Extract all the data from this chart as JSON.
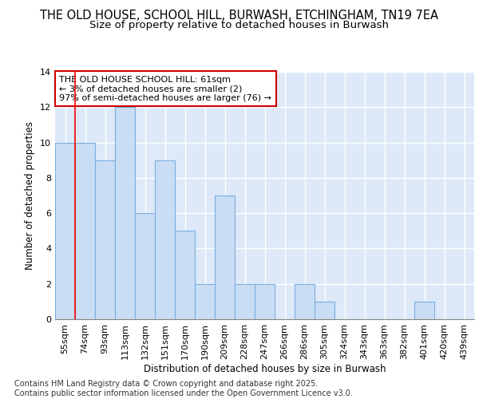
{
  "title1": "THE OLD HOUSE, SCHOOL HILL, BURWASH, ETCHINGHAM, TN19 7EA",
  "title2": "Size of property relative to detached houses in Burwash",
  "xlabel": "Distribution of detached houses by size in Burwash",
  "ylabel": "Number of detached properties",
  "categories": [
    "55sqm",
    "74sqm",
    "93sqm",
    "113sqm",
    "132sqm",
    "151sqm",
    "170sqm",
    "190sqm",
    "209sqm",
    "228sqm",
    "247sqm",
    "266sqm",
    "286sqm",
    "305sqm",
    "324sqm",
    "343sqm",
    "363sqm",
    "382sqm",
    "401sqm",
    "420sqm",
    "439sqm"
  ],
  "values": [
    10,
    10,
    9,
    12,
    6,
    9,
    5,
    2,
    7,
    2,
    2,
    0,
    2,
    1,
    0,
    0,
    0,
    0,
    1,
    0,
    0
  ],
  "bar_color": "#c9ddf5",
  "bar_edge_color": "#7aaede",
  "red_line_x": 0.5,
  "annotation_text": "THE OLD HOUSE SCHOOL HILL: 61sqm\n← 3% of detached houses are smaller (2)\n97% of semi-detached houses are larger (76) →",
  "annotation_box_color": "white",
  "annotation_box_edge_color": "#cc0000",
  "ylim": [
    0,
    14
  ],
  "yticks": [
    0,
    2,
    4,
    6,
    8,
    10,
    12,
    14
  ],
  "footer_text": "Contains HM Land Registry data © Crown copyright and database right 2025.\nContains public sector information licensed under the Open Government Licence v3.0.",
  "fig_bg_color": "#ffffff",
  "plot_bg_color": "#dde9f8",
  "grid_color": "#ffffff",
  "title_fontsize": 10.5,
  "subtitle_fontsize": 9.5,
  "axis_label_fontsize": 8.5,
  "tick_fontsize": 8,
  "annotation_fontsize": 8,
  "footer_fontsize": 7
}
